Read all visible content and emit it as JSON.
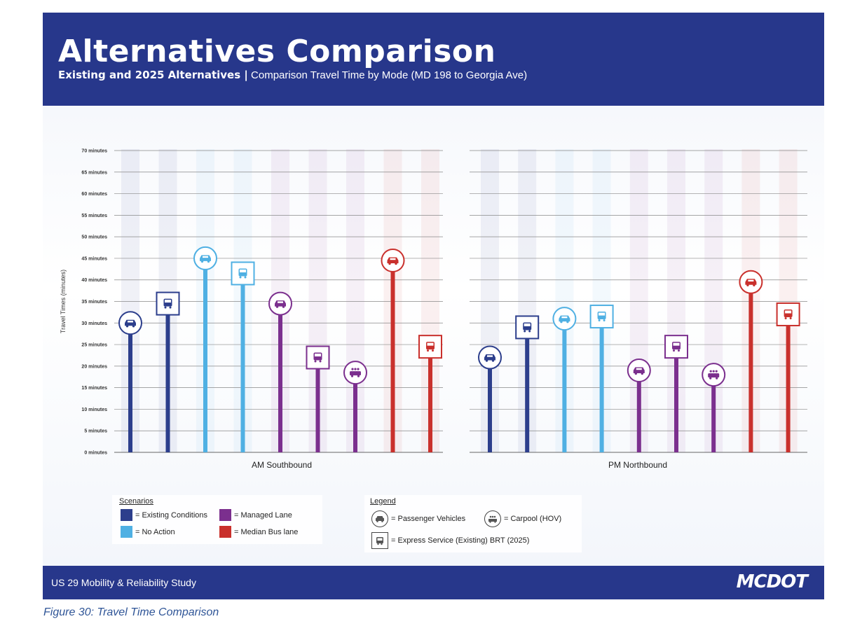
{
  "header": {
    "title": "Alternatives Comparison",
    "subtitle_bold": "Existing and 2025 Alternatives |",
    "subtitle_rest": " Comparison Travel Time by Mode (MD 198 to Georgia Ave)"
  },
  "footer": {
    "study": "US 29 Mobility & Reliability Study",
    "logo": "MCDOT"
  },
  "caption": "Figure 30: Travel Time Comparison",
  "colors": {
    "existing": "#2c3e8c",
    "no_action": "#4fb0e3",
    "managed": "#7b2f8e",
    "median_bus": "#c9302c",
    "header_bg": "#27378b"
  },
  "legend": {
    "scenarios_title": "Scenarios",
    "scenarios": [
      {
        "label": "= Existing Conditions",
        "color": "existing"
      },
      {
        "label": "= Managed Lane",
        "color": "managed"
      },
      {
        "label": "= No Action",
        "color": "no_action"
      },
      {
        "label": "= Median Bus lane",
        "color": "median_bus"
      }
    ],
    "modes_title": "Legend",
    "modes": [
      {
        "label": "= Passenger Vehicles",
        "icon": "car-icon",
        "shape": "circle"
      },
      {
        "label": "= Carpool (HOV)",
        "icon": "carpool-icon",
        "shape": "circle"
      },
      {
        "label": "= Express Service (Existing) BRT (2025)",
        "icon": "bus-icon",
        "shape": "square"
      }
    ]
  },
  "chart_data": {
    "type": "bar",
    "ylabel": "Travel Times (minutes)",
    "ylim": [
      0,
      70
    ],
    "yticks": [
      "0 minutes",
      "5 minutes",
      "10 minutes",
      "15 minutes",
      "20 minutes",
      "25 minutes",
      "30 minutes",
      "35 minutes",
      "40 minutes",
      "45 minutes",
      "50 minutes",
      "55 minutes",
      "60 minutes",
      "65 minutes",
      "70 minutes"
    ],
    "grid": true,
    "groups": [
      {
        "name": "AM Southbound",
        "bars": [
          {
            "scenario": "existing",
            "mode": "passenger",
            "value": 30
          },
          {
            "scenario": "existing",
            "mode": "bus",
            "value": 34.5
          },
          {
            "scenario": "no_action",
            "mode": "passenger",
            "value": 45
          },
          {
            "scenario": "no_action",
            "mode": "bus",
            "value": 41.5
          },
          {
            "scenario": "managed",
            "mode": "passenger",
            "value": 34.5
          },
          {
            "scenario": "managed",
            "mode": "bus",
            "value": 22
          },
          {
            "scenario": "managed",
            "mode": "carpool",
            "value": 18.5
          },
          {
            "scenario": "median_bus",
            "mode": "passenger",
            "value": 44.5
          },
          {
            "scenario": "median_bus",
            "mode": "bus",
            "value": 24.5
          }
        ]
      },
      {
        "name": "PM Northbound",
        "bars": [
          {
            "scenario": "existing",
            "mode": "passenger",
            "value": 22
          },
          {
            "scenario": "existing",
            "mode": "bus",
            "value": 29
          },
          {
            "scenario": "no_action",
            "mode": "passenger",
            "value": 31
          },
          {
            "scenario": "no_action",
            "mode": "bus",
            "value": 31.5
          },
          {
            "scenario": "managed",
            "mode": "passenger",
            "value": 19
          },
          {
            "scenario": "managed",
            "mode": "bus",
            "value": 24.5
          },
          {
            "scenario": "managed",
            "mode": "carpool",
            "value": 18
          },
          {
            "scenario": "median_bus",
            "mode": "passenger",
            "value": 39.5
          },
          {
            "scenario": "median_bus",
            "mode": "bus",
            "value": 32
          }
        ]
      }
    ]
  }
}
